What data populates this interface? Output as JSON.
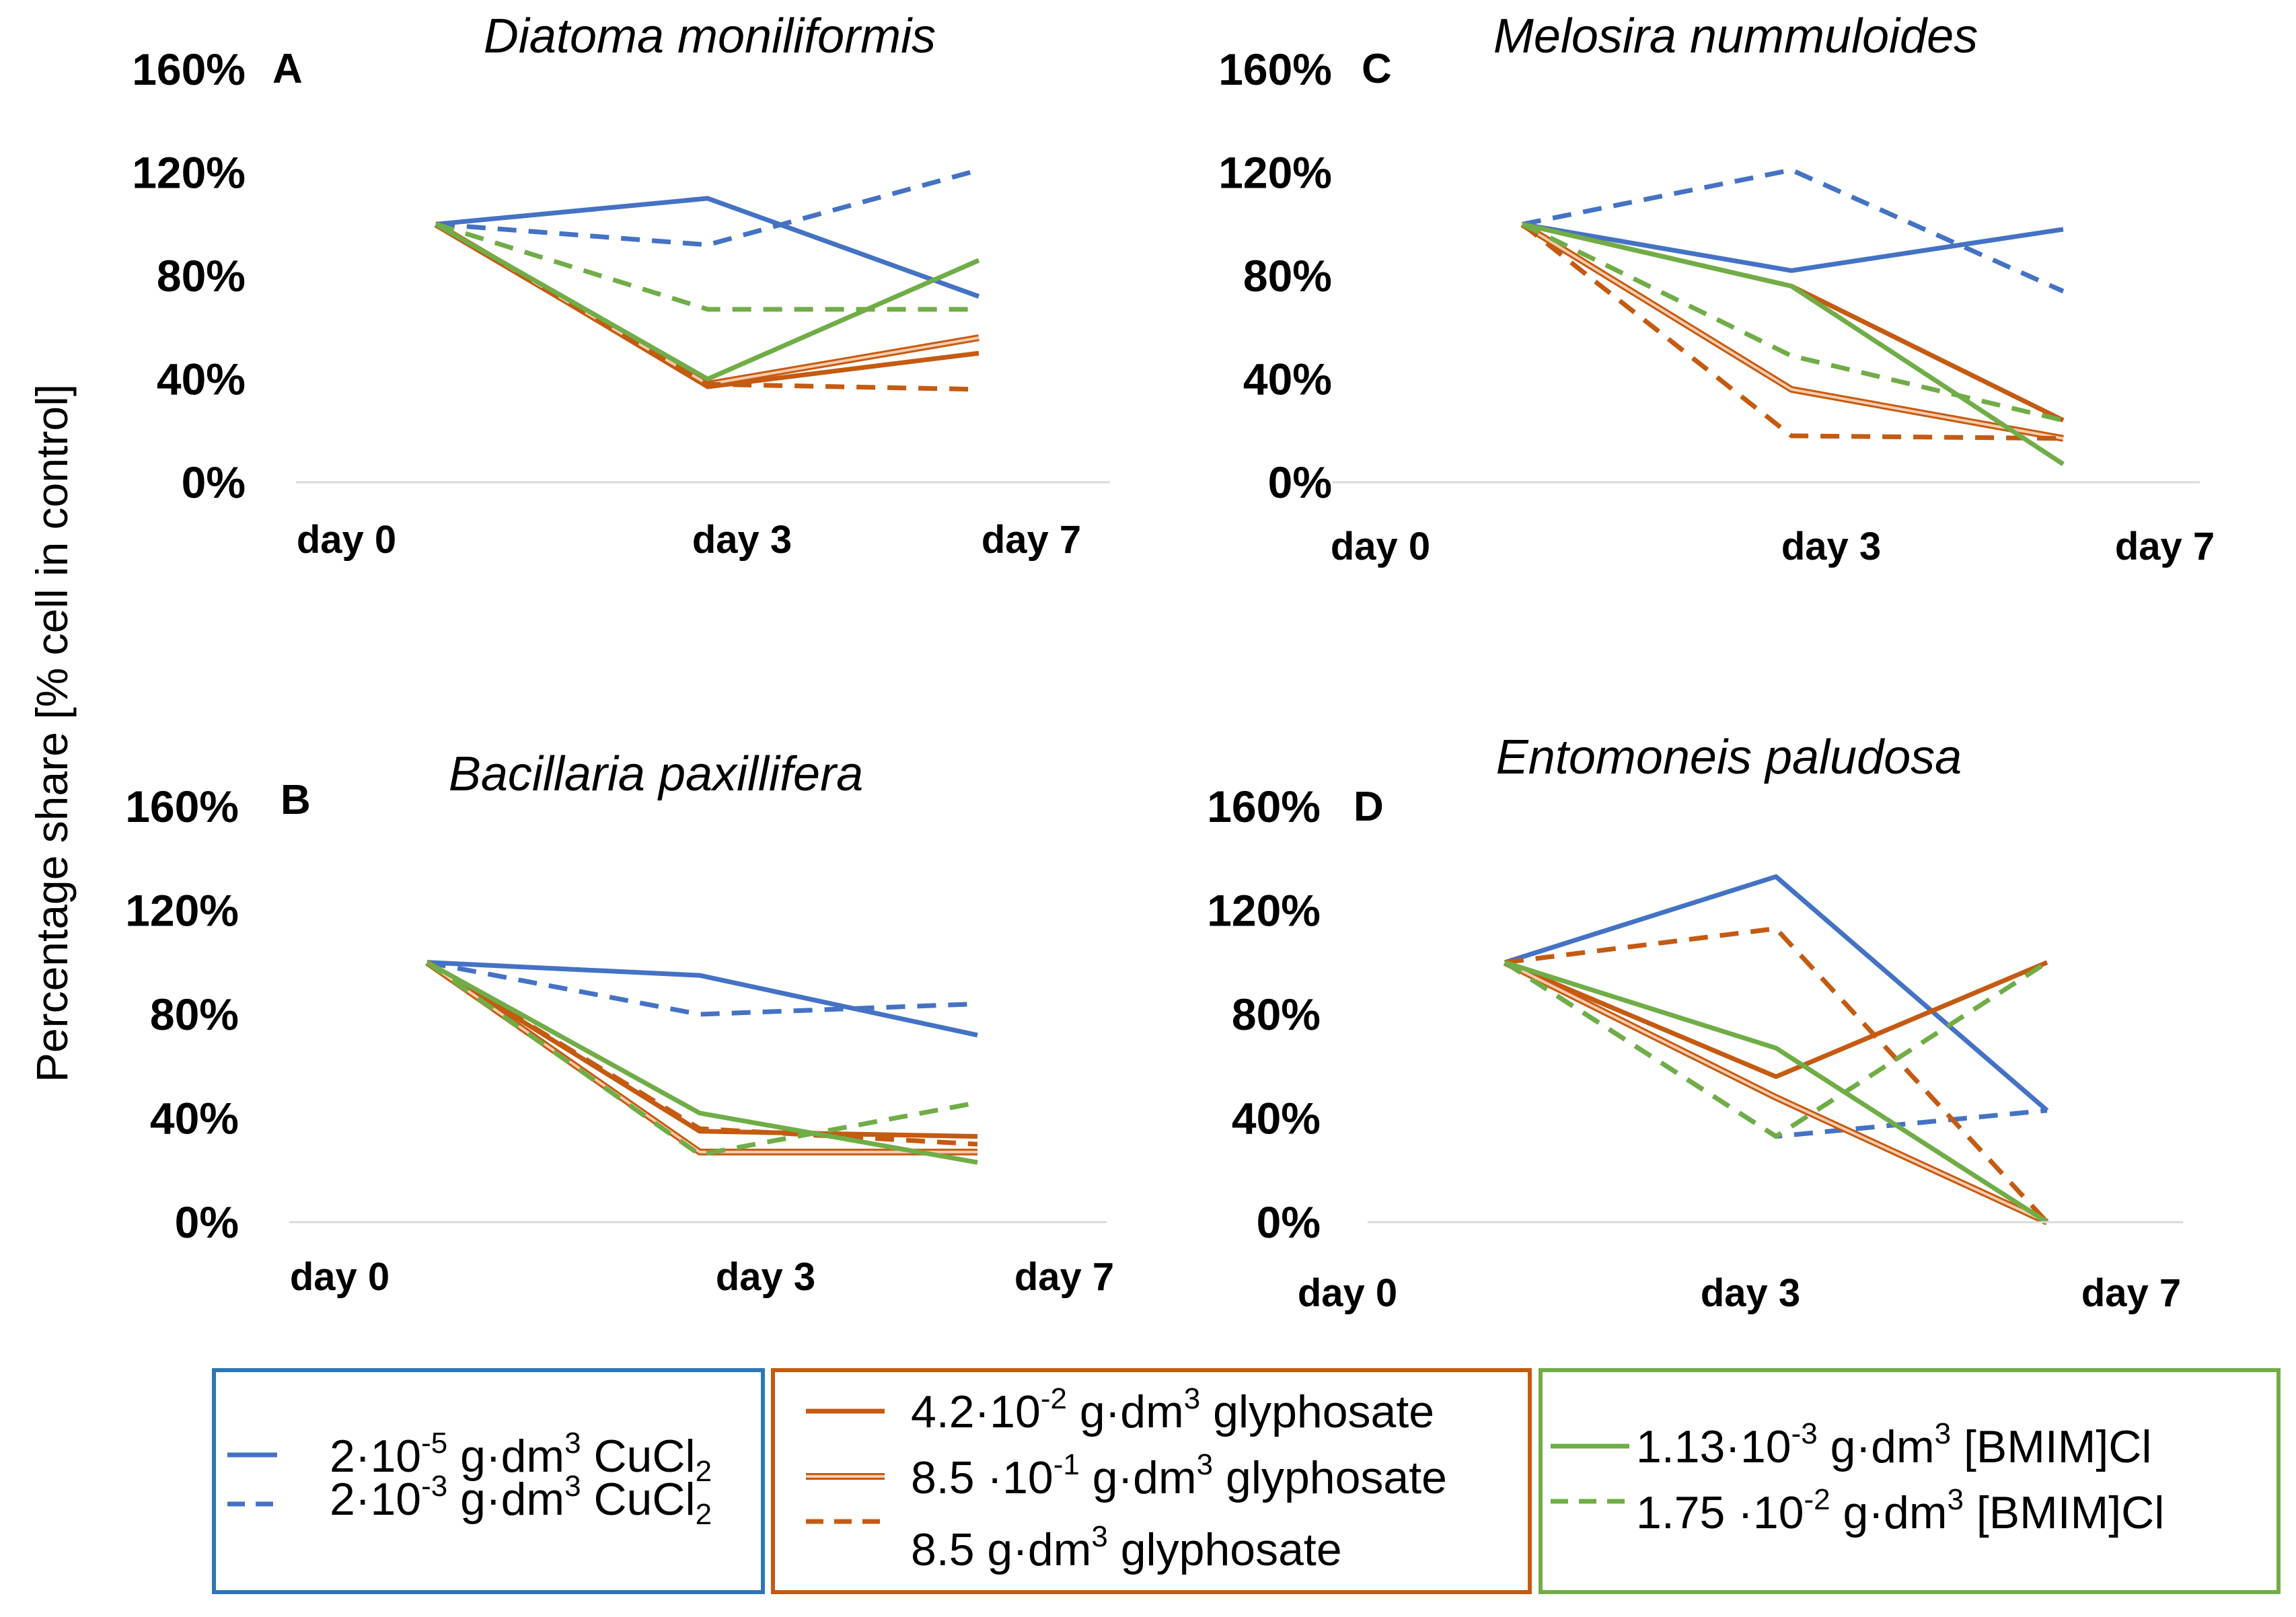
{
  "figure": {
    "ylabel": "Percentage share [% cell in control]"
  },
  "series_styles": [
    {
      "key": "cu_low",
      "color": "#4472C4",
      "style": "solid"
    },
    {
      "key": "cu_high",
      "color": "#4472C4",
      "style": "dashed"
    },
    {
      "key": "gly_low",
      "color": "#C55A11",
      "style": "solid"
    },
    {
      "key": "gly_mid",
      "color": "#F4B183",
      "style": "double"
    },
    {
      "key": "gly_high",
      "color": "#C55A11",
      "style": "dashed"
    },
    {
      "key": "il_low",
      "color": "#70AD47",
      "style": "solid"
    },
    {
      "key": "il_high",
      "color": "#70AD47",
      "style": "dashed"
    }
  ],
  "legend": {
    "groups": [
      {
        "border_color": "#2E75B6",
        "items": [
          {
            "key": "cu_low",
            "parts": [
              "2·10",
              "-5",
              " g·dm",
              "3",
              " CuCl",
              "2"
            ]
          },
          {
            "key": "cu_high",
            "parts": [
              "2·10",
              "-3",
              " g·dm",
              "3",
              " CuCl",
              "2"
            ]
          }
        ]
      },
      {
        "border_color": "#C55A11",
        "items": [
          {
            "key": "gly_low",
            "parts": [
              "4.2·10",
              "-2",
              " g·dm",
              "3",
              " glyphosate"
            ]
          },
          {
            "key": "gly_mid",
            "parts": [
              "8.5 ·10",
              "-1",
              " g·dm",
              "3",
              " glyphosate"
            ]
          },
          {
            "key": "gly_high",
            "parts": [
              "8.5 g·dm",
              "3",
              " glyphosate"
            ]
          }
        ]
      },
      {
        "border_color": "#70AD47",
        "items": [
          {
            "key": "il_low",
            "parts": [
              "1.13·10",
              "-3",
              " g·dm",
              "3",
              " [BMIM]Cl"
            ]
          },
          {
            "key": "il_high",
            "parts": [
              "1.75 ·10",
              "-2",
              " g·dm",
              "3",
              " [BMIM]Cl"
            ]
          }
        ]
      }
    ]
  },
  "chart_data": [
    {
      "type": "line",
      "panel": "A",
      "title": "Diatoma moniliformis",
      "x": [
        "day 0",
        "day 3",
        "day 7"
      ],
      "yticks": [
        "160%",
        "120%",
        "80%",
        "40%",
        "0%"
      ],
      "ylim": [
        0,
        160
      ],
      "series": [
        {
          "key": "cu_low",
          "values": [
            100,
            110,
            72
          ]
        },
        {
          "key": "cu_high",
          "values": [
            100,
            92,
            121
          ]
        },
        {
          "key": "gly_low",
          "values": [
            100,
            37,
            50
          ]
        },
        {
          "key": "gly_mid",
          "values": [
            100,
            38,
            56
          ]
        },
        {
          "key": "gly_high",
          "values": [
            100,
            38,
            36
          ]
        },
        {
          "key": "il_low",
          "values": [
            100,
            40,
            86
          ]
        },
        {
          "key": "il_high",
          "values": [
            100,
            67,
            67
          ]
        }
      ]
    },
    {
      "type": "line",
      "panel": "B",
      "title": "Bacillaria paxillifera",
      "x": [
        "day 0",
        "day 3",
        "day 7"
      ],
      "yticks": [
        "160%",
        "120%",
        "80%",
        "40%",
        "0%"
      ],
      "ylim": [
        0,
        160
      ],
      "series": [
        {
          "key": "cu_low",
          "values": [
            100,
            95,
            72
          ]
        },
        {
          "key": "cu_high",
          "values": [
            100,
            80,
            84
          ]
        },
        {
          "key": "gly_low",
          "values": [
            100,
            35,
            33
          ]
        },
        {
          "key": "gly_mid",
          "values": [
            100,
            27,
            27
          ]
        },
        {
          "key": "gly_high",
          "values": [
            100,
            36,
            30
          ]
        },
        {
          "key": "il_low",
          "values": [
            100,
            42,
            23
          ]
        },
        {
          "key": "il_high",
          "values": [
            100,
            26,
            46
          ]
        }
      ]
    },
    {
      "type": "line",
      "panel": "C",
      "title": "Melosira nummuloides",
      "x": [
        "day 0",
        "day 3",
        "day 7"
      ],
      "yticks": [
        "160%",
        "120%",
        "80%",
        "40%",
        "0%"
      ],
      "ylim": [
        0,
        160
      ],
      "series": [
        {
          "key": "cu_low",
          "values": [
            100,
            82,
            98
          ]
        },
        {
          "key": "cu_high",
          "values": [
            100,
            121,
            74
          ]
        },
        {
          "key": "gly_low",
          "values": [
            100,
            76,
            24
          ]
        },
        {
          "key": "gly_mid",
          "values": [
            100,
            36,
            17
          ]
        },
        {
          "key": "gly_high",
          "values": [
            100,
            18,
            17
          ]
        },
        {
          "key": "il_low",
          "values": [
            100,
            76,
            7
          ]
        },
        {
          "key": "il_high",
          "values": [
            100,
            49,
            24
          ]
        }
      ]
    },
    {
      "type": "line",
      "panel": "D",
      "title": "Entomoneis paludosa",
      "x": [
        "day 0",
        "day 3",
        "day 7"
      ],
      "yticks": [
        "160%",
        "120%",
        "80%",
        "40%",
        "0%"
      ],
      "ylim": [
        0,
        160
      ],
      "series": [
        {
          "key": "cu_low",
          "values": [
            100,
            133,
            43
          ]
        },
        {
          "key": "cu_high",
          "values": [
            100,
            33,
            43
          ]
        },
        {
          "key": "gly_low",
          "values": [
            100,
            56,
            100
          ]
        },
        {
          "key": "gly_mid",
          "values": [
            100,
            48,
            0
          ]
        },
        {
          "key": "gly_high",
          "values": [
            100,
            113,
            0
          ]
        },
        {
          "key": "il_low",
          "values": [
            100,
            67,
            0
          ]
        },
        {
          "key": "il_high",
          "values": [
            100,
            33,
            100
          ]
        }
      ]
    }
  ]
}
